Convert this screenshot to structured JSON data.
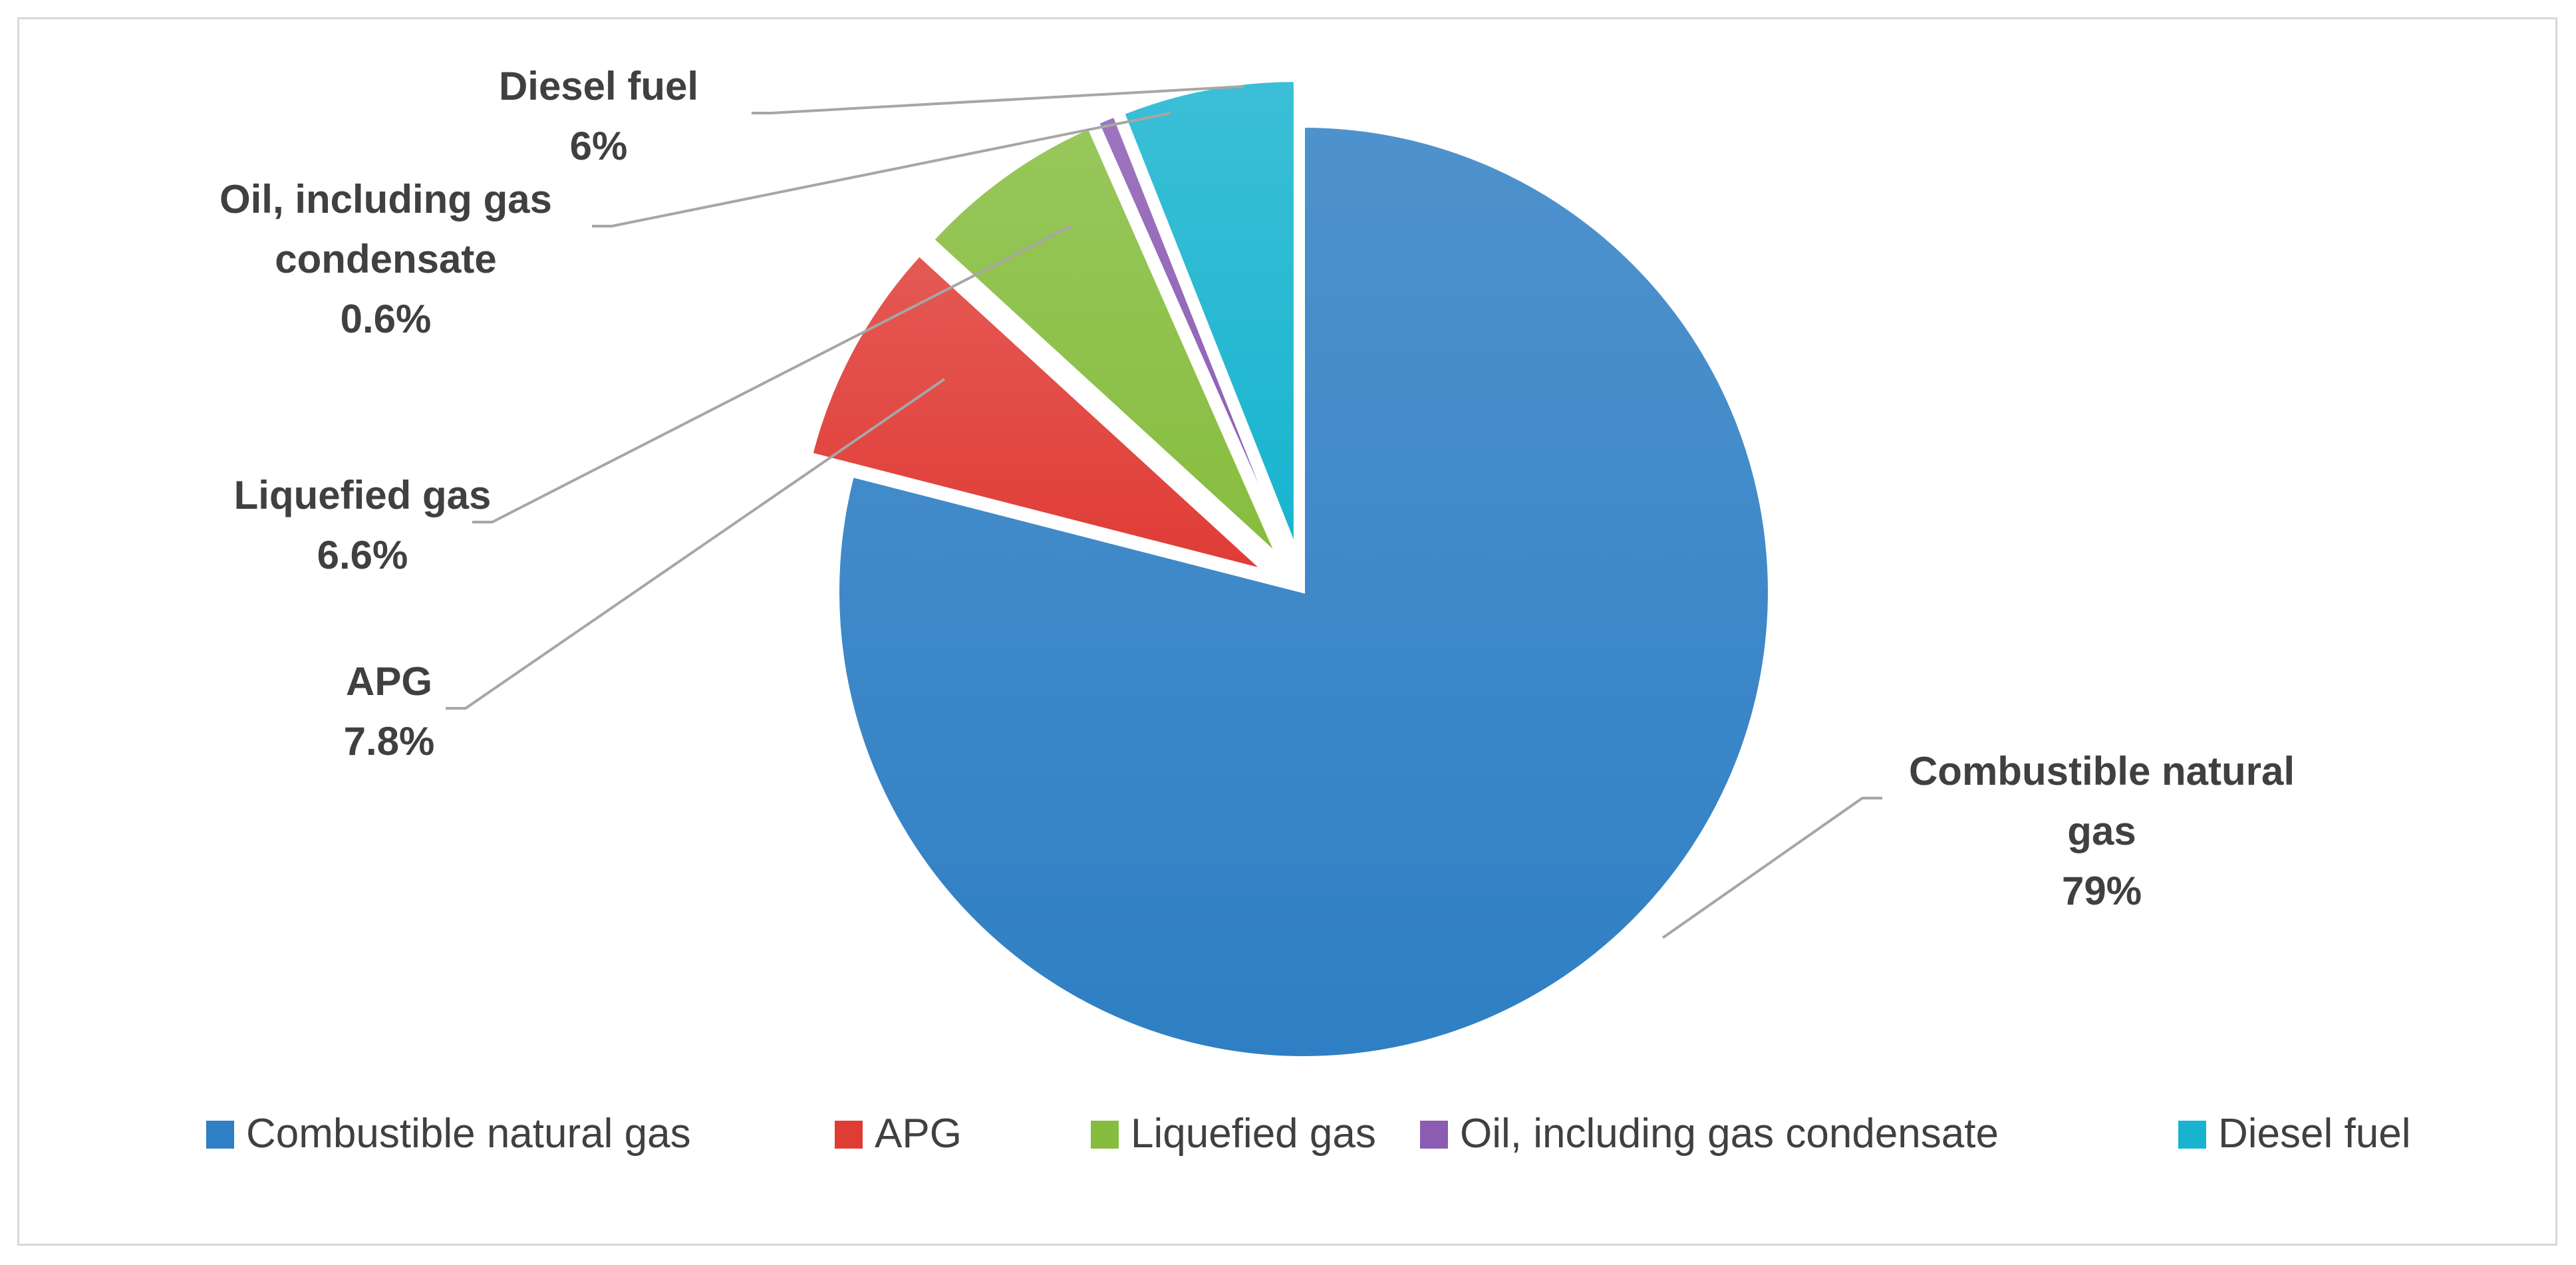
{
  "chart_data": {
    "type": "pie",
    "title": "",
    "start_angle_deg": 90,
    "direction": "clockwise",
    "exploded": true,
    "legend_position": "bottom",
    "slices": [
      {
        "label": "Combustible natural gas",
        "value": 79,
        "value_label": "79%",
        "color": "#2f7fc4",
        "label_lines": [
          "Combustible natural",
          "gas",
          "79%"
        ]
      },
      {
        "label": "APG",
        "value": 7.8,
        "value_label": "7.8%",
        "color": "#e03c36",
        "label_lines": [
          "APG",
          "7.8%"
        ]
      },
      {
        "label": "Liquefied gas",
        "value": 6.6,
        "value_label": "6.6%",
        "color": "#86bd3e",
        "label_lines": [
          "Liquefied gas",
          "6.6%"
        ]
      },
      {
        "label": "Oil, including gas condensate",
        "value": 0.6,
        "value_label": "0.6%",
        "color": "#8c5cb3",
        "label_lines": [
          "Oil, including gas",
          "condensate",
          "0.6%"
        ]
      },
      {
        "label": "Diesel fuel",
        "value": 6,
        "value_label": "6%",
        "color": "#18b4cf",
        "label_lines": [
          "Diesel fuel",
          "6%"
        ]
      }
    ]
  }
}
